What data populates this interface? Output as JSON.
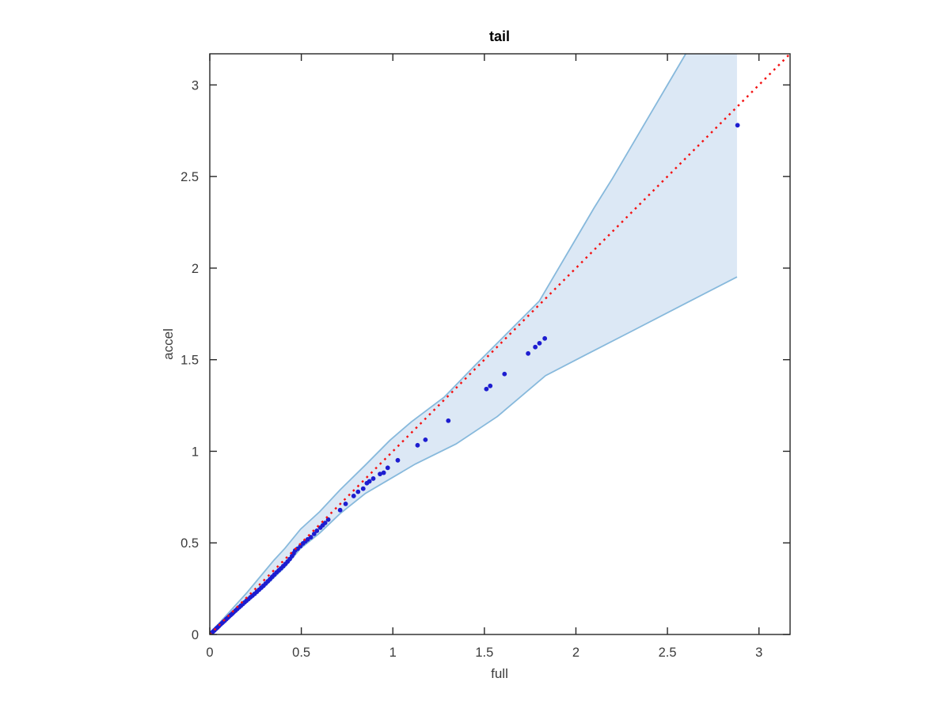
{
  "figure": {
    "title": "tail",
    "xlabel": "full",
    "ylabel": "accel"
  },
  "chart_data": {
    "type": "scatter",
    "title": "tail",
    "xlabel": "full",
    "ylabel": "accel",
    "xlim": [
      0,
      3.17
    ],
    "ylim": [
      0,
      3.17
    ],
    "xticks": [
      0,
      0.5,
      1,
      1.5,
      2,
      2.5,
      3
    ],
    "yticks": [
      0,
      0.5,
      1,
      1.5,
      2,
      2.5,
      3
    ],
    "grid": false,
    "legend": null,
    "colors": {
      "point": "#1d1dd0",
      "reference_line": "#f31414",
      "band_fill": "#dce8f5",
      "band_edge": "#87b9dc",
      "axis": "#262626"
    },
    "reference_line": {
      "style": "dotted",
      "from": [
        0,
        0
      ],
      "to": [
        3.17,
        3.17
      ]
    },
    "confidence_band": {
      "x_end": 2.88,
      "upper": [
        [
          0,
          0.01
        ],
        [
          0.05,
          0.06
        ],
        [
          0.1,
          0.115
        ],
        [
          0.15,
          0.17
        ],
        [
          0.2,
          0.225
        ],
        [
          0.25,
          0.285
        ],
        [
          0.3,
          0.345
        ],
        [
          0.35,
          0.405
        ],
        [
          0.41,
          0.47
        ],
        [
          0.496,
          0.575
        ],
        [
          0.6,
          0.67
        ],
        [
          0.712,
          0.79
        ],
        [
          0.85,
          0.925
        ],
        [
          0.984,
          1.06
        ],
        [
          1.1,
          1.16
        ],
        [
          1.281,
          1.296
        ],
        [
          1.45,
          1.47
        ],
        [
          1.62,
          1.64
        ],
        [
          1.8,
          1.82
        ],
        [
          1.9,
          1.99
        ],
        [
          2.0,
          2.16
        ],
        [
          2.1,
          2.33
        ],
        [
          2.2,
          2.49
        ],
        [
          2.3,
          2.66
        ],
        [
          2.4,
          2.83
        ],
        [
          2.5,
          3.0
        ],
        [
          2.6,
          3.17
        ]
      ],
      "lower": [
        [
          0,
          0.0
        ],
        [
          0.05,
          0.042
        ],
        [
          0.1,
          0.088
        ],
        [
          0.15,
          0.132
        ],
        [
          0.2,
          0.175
        ],
        [
          0.25,
          0.218
        ],
        [
          0.3,
          0.262
        ],
        [
          0.35,
          0.31
        ],
        [
          0.41,
          0.368
        ],
        [
          0.496,
          0.47
        ],
        [
          0.6,
          0.553
        ],
        [
          0.712,
          0.66
        ],
        [
          0.85,
          0.77
        ],
        [
          1.0,
          0.858
        ],
        [
          1.122,
          0.93
        ],
        [
          1.345,
          1.04
        ],
        [
          1.571,
          1.19
        ],
        [
          1.834,
          1.413
        ],
        [
          2.05,
          1.525
        ],
        [
          2.3,
          1.653
        ],
        [
          2.61,
          1.813
        ],
        [
          2.88,
          1.952
        ]
      ]
    },
    "points": [
      [
        0.01,
        0.008
      ],
      [
        0.018,
        0.016
      ],
      [
        0.026,
        0.023
      ],
      [
        0.034,
        0.031
      ],
      [
        0.042,
        0.038
      ],
      [
        0.05,
        0.046
      ],
      [
        0.058,
        0.054
      ],
      [
        0.066,
        0.061
      ],
      [
        0.074,
        0.069
      ],
      [
        0.082,
        0.076
      ],
      [
        0.09,
        0.084
      ],
      [
        0.098,
        0.091
      ],
      [
        0.106,
        0.099
      ],
      [
        0.114,
        0.106
      ],
      [
        0.122,
        0.113
      ],
      [
        0.13,
        0.121
      ],
      [
        0.14,
        0.13
      ],
      [
        0.15,
        0.139
      ],
      [
        0.16,
        0.148
      ],
      [
        0.17,
        0.157
      ],
      [
        0.18,
        0.166
      ],
      [
        0.19,
        0.175
      ],
      [
        0.2,
        0.184
      ],
      [
        0.211,
        0.193
      ],
      [
        0.222,
        0.203
      ],
      [
        0.233,
        0.212
      ],
      [
        0.245,
        0.222
      ],
      [
        0.257,
        0.233
      ],
      [
        0.269,
        0.244
      ],
      [
        0.281,
        0.255
      ],
      [
        0.293,
        0.266
      ],
      [
        0.305,
        0.278
      ],
      [
        0.317,
        0.29
      ],
      [
        0.329,
        0.302
      ],
      [
        0.341,
        0.315
      ],
      [
        0.353,
        0.327
      ],
      [
        0.365,
        0.339
      ],
      [
        0.377,
        0.35
      ],
      [
        0.389,
        0.361
      ],
      [
        0.401,
        0.373
      ],
      [
        0.413,
        0.385
      ],
      [
        0.425,
        0.398
      ],
      [
        0.437,
        0.412
      ],
      [
        0.449,
        0.428
      ],
      [
        0.458,
        0.443
      ],
      [
        0.466,
        0.458
      ],
      [
        0.48,
        0.468
      ],
      [
        0.495,
        0.482
      ],
      [
        0.509,
        0.497
      ],
      [
        0.522,
        0.508
      ],
      [
        0.535,
        0.519
      ],
      [
        0.552,
        0.531
      ],
      [
        0.57,
        0.549
      ],
      [
        0.585,
        0.566
      ],
      [
        0.604,
        0.583
      ],
      [
        0.617,
        0.596
      ],
      [
        0.63,
        0.609
      ],
      [
        0.647,
        0.627
      ],
      [
        0.712,
        0.679
      ],
      [
        0.742,
        0.713
      ],
      [
        0.786,
        0.756
      ],
      [
        0.81,
        0.779
      ],
      [
        0.838,
        0.796
      ],
      [
        0.858,
        0.826
      ],
      [
        0.872,
        0.836
      ],
      [
        0.893,
        0.851
      ],
      [
        0.93,
        0.876
      ],
      [
        0.95,
        0.883
      ],
      [
        0.972,
        0.91
      ],
      [
        1.027,
        0.951
      ],
      [
        1.135,
        1.033
      ],
      [
        1.178,
        1.063
      ],
      [
        1.303,
        1.167
      ],
      [
        1.511,
        1.34
      ],
      [
        1.532,
        1.357
      ],
      [
        1.61,
        1.422
      ],
      [
        1.739,
        1.534
      ],
      [
        1.778,
        1.569
      ],
      [
        1.801,
        1.59
      ],
      [
        1.83,
        1.616
      ],
      [
        2.883,
        2.78
      ]
    ]
  }
}
